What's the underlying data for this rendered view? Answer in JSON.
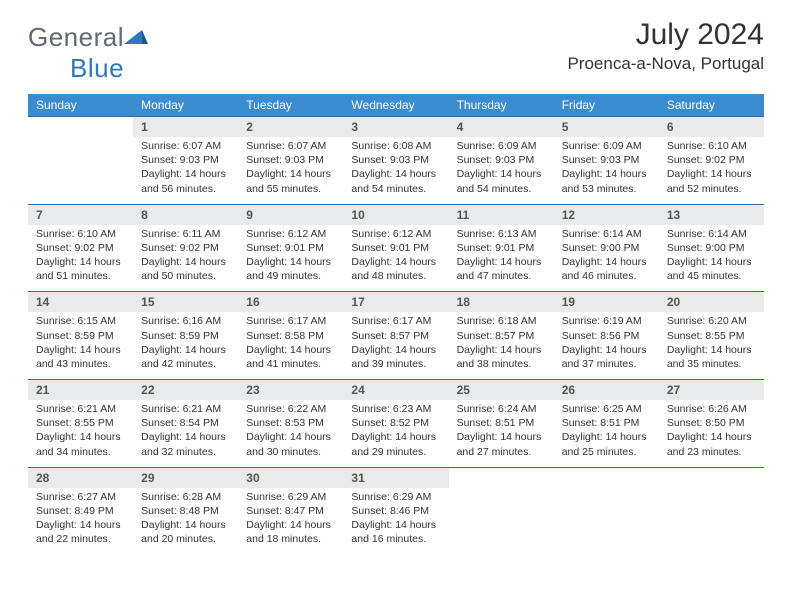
{
  "logo": {
    "part1": "General",
    "part2": "Blue"
  },
  "title": "July 2024",
  "location": "Proenca-a-Nova, Portugal",
  "colors": {
    "header_bg": "#3b8bd0",
    "header_text": "#ffffff",
    "daynum_bg": "#e9eaeb",
    "row_border": "#2f6fa8",
    "logo_gray": "#5f6a72",
    "logo_blue": "#2f78bd"
  },
  "weekdays": [
    "Sunday",
    "Monday",
    "Tuesday",
    "Wednesday",
    "Thursday",
    "Friday",
    "Saturday"
  ],
  "weeks": [
    {
      "nums": [
        "",
        "1",
        "2",
        "3",
        "4",
        "5",
        "6"
      ],
      "cells": [
        null,
        {
          "sr": "Sunrise: 6:07 AM",
          "ss": "Sunset: 9:03 PM",
          "dl": "Daylight: 14 hours and 56 minutes."
        },
        {
          "sr": "Sunrise: 6:07 AM",
          "ss": "Sunset: 9:03 PM",
          "dl": "Daylight: 14 hours and 55 minutes."
        },
        {
          "sr": "Sunrise: 6:08 AM",
          "ss": "Sunset: 9:03 PM",
          "dl": "Daylight: 14 hours and 54 minutes."
        },
        {
          "sr": "Sunrise: 6:09 AM",
          "ss": "Sunset: 9:03 PM",
          "dl": "Daylight: 14 hours and 54 minutes."
        },
        {
          "sr": "Sunrise: 6:09 AM",
          "ss": "Sunset: 9:03 PM",
          "dl": "Daylight: 14 hours and 53 minutes."
        },
        {
          "sr": "Sunrise: 6:10 AM",
          "ss": "Sunset: 9:02 PM",
          "dl": "Daylight: 14 hours and 52 minutes."
        }
      ]
    },
    {
      "nums": [
        "7",
        "8",
        "9",
        "10",
        "11",
        "12",
        "13"
      ],
      "cells": [
        {
          "sr": "Sunrise: 6:10 AM",
          "ss": "Sunset: 9:02 PM",
          "dl": "Daylight: 14 hours and 51 minutes."
        },
        {
          "sr": "Sunrise: 6:11 AM",
          "ss": "Sunset: 9:02 PM",
          "dl": "Daylight: 14 hours and 50 minutes."
        },
        {
          "sr": "Sunrise: 6:12 AM",
          "ss": "Sunset: 9:01 PM",
          "dl": "Daylight: 14 hours and 49 minutes."
        },
        {
          "sr": "Sunrise: 6:12 AM",
          "ss": "Sunset: 9:01 PM",
          "dl": "Daylight: 14 hours and 48 minutes."
        },
        {
          "sr": "Sunrise: 6:13 AM",
          "ss": "Sunset: 9:01 PM",
          "dl": "Daylight: 14 hours and 47 minutes."
        },
        {
          "sr": "Sunrise: 6:14 AM",
          "ss": "Sunset: 9:00 PM",
          "dl": "Daylight: 14 hours and 46 minutes."
        },
        {
          "sr": "Sunrise: 6:14 AM",
          "ss": "Sunset: 9:00 PM",
          "dl": "Daylight: 14 hours and 45 minutes."
        }
      ]
    },
    {
      "nums": [
        "14",
        "15",
        "16",
        "17",
        "18",
        "19",
        "20"
      ],
      "cells": [
        {
          "sr": "Sunrise: 6:15 AM",
          "ss": "Sunset: 8:59 PM",
          "dl": "Daylight: 14 hours and 43 minutes."
        },
        {
          "sr": "Sunrise: 6:16 AM",
          "ss": "Sunset: 8:59 PM",
          "dl": "Daylight: 14 hours and 42 minutes."
        },
        {
          "sr": "Sunrise: 6:17 AM",
          "ss": "Sunset: 8:58 PM",
          "dl": "Daylight: 14 hours and 41 minutes."
        },
        {
          "sr": "Sunrise: 6:17 AM",
          "ss": "Sunset: 8:57 PM",
          "dl": "Daylight: 14 hours and 39 minutes."
        },
        {
          "sr": "Sunrise: 6:18 AM",
          "ss": "Sunset: 8:57 PM",
          "dl": "Daylight: 14 hours and 38 minutes."
        },
        {
          "sr": "Sunrise: 6:19 AM",
          "ss": "Sunset: 8:56 PM",
          "dl": "Daylight: 14 hours and 37 minutes."
        },
        {
          "sr": "Sunrise: 6:20 AM",
          "ss": "Sunset: 8:55 PM",
          "dl": "Daylight: 14 hours and 35 minutes."
        }
      ]
    },
    {
      "nums": [
        "21",
        "22",
        "23",
        "24",
        "25",
        "26",
        "27"
      ],
      "cells": [
        {
          "sr": "Sunrise: 6:21 AM",
          "ss": "Sunset: 8:55 PM",
          "dl": "Daylight: 14 hours and 34 minutes."
        },
        {
          "sr": "Sunrise: 6:21 AM",
          "ss": "Sunset: 8:54 PM",
          "dl": "Daylight: 14 hours and 32 minutes."
        },
        {
          "sr": "Sunrise: 6:22 AM",
          "ss": "Sunset: 8:53 PM",
          "dl": "Daylight: 14 hours and 30 minutes."
        },
        {
          "sr": "Sunrise: 6:23 AM",
          "ss": "Sunset: 8:52 PM",
          "dl": "Daylight: 14 hours and 29 minutes."
        },
        {
          "sr": "Sunrise: 6:24 AM",
          "ss": "Sunset: 8:51 PM",
          "dl": "Daylight: 14 hours and 27 minutes."
        },
        {
          "sr": "Sunrise: 6:25 AM",
          "ss": "Sunset: 8:51 PM",
          "dl": "Daylight: 14 hours and 25 minutes."
        },
        {
          "sr": "Sunrise: 6:26 AM",
          "ss": "Sunset: 8:50 PM",
          "dl": "Daylight: 14 hours and 23 minutes."
        }
      ]
    },
    {
      "nums": [
        "28",
        "29",
        "30",
        "31",
        "",
        "",
        ""
      ],
      "cells": [
        {
          "sr": "Sunrise: 6:27 AM",
          "ss": "Sunset: 8:49 PM",
          "dl": "Daylight: 14 hours and 22 minutes."
        },
        {
          "sr": "Sunrise: 6:28 AM",
          "ss": "Sunset: 8:48 PM",
          "dl": "Daylight: 14 hours and 20 minutes."
        },
        {
          "sr": "Sunrise: 6:29 AM",
          "ss": "Sunset: 8:47 PM",
          "dl": "Daylight: 14 hours and 18 minutes."
        },
        {
          "sr": "Sunrise: 6:29 AM",
          "ss": "Sunset: 8:46 PM",
          "dl": "Daylight: 14 hours and 16 minutes."
        },
        null,
        null,
        null
      ]
    }
  ]
}
